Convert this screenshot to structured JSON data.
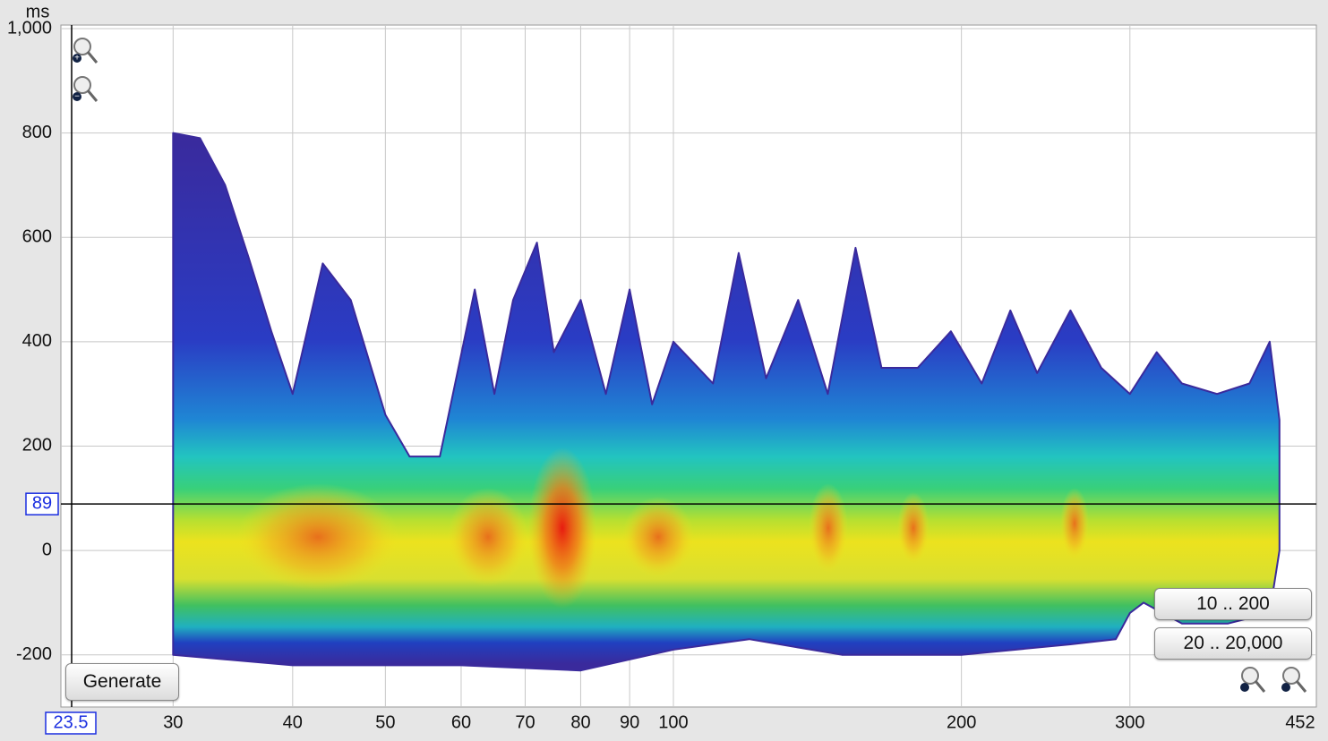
{
  "chart_data": {
    "type": "spectrogram",
    "y_unit": "ms",
    "x_scale": "log",
    "grid": true,
    "xlim": [
      23.5,
      452
    ],
    "ylim": [
      -300,
      1000
    ],
    "xticks": [
      30,
      40,
      50,
      60,
      70,
      80,
      90,
      100,
      200,
      300
    ],
    "yticks": [
      {
        "value": 1000,
        "label": "1,000"
      },
      800,
      600,
      400,
      200,
      0,
      -200
    ],
    "cursor": {
      "x": 23.5,
      "y": 89
    },
    "envelope": {
      "top_x": [
        30,
        32,
        34,
        36,
        38,
        40,
        43,
        46,
        50,
        53,
        57,
        62,
        65,
        68,
        72,
        75,
        80,
        85,
        90,
        95,
        100,
        110,
        117,
        125,
        135,
        145,
        155,
        165,
        180,
        195,
        210,
        225,
        240,
        260,
        280,
        300,
        320,
        340,
        370,
        400,
        420,
        430
      ],
      "top": [
        800,
        790,
        700,
        560,
        420,
        300,
        550,
        480,
        260,
        180,
        180,
        500,
        300,
        480,
        590,
        380,
        480,
        300,
        500,
        280,
        400,
        320,
        570,
        330,
        480,
        300,
        580,
        350,
        350,
        420,
        320,
        460,
        340,
        460,
        350,
        300,
        380,
        320,
        300,
        320,
        400,
        250
      ],
      "bottom_x": [
        30,
        40,
        60,
        80,
        100,
        120,
        150,
        200,
        260,
        290,
        300,
        310,
        340,
        380,
        420,
        430
      ],
      "bottom": [
        -200,
        -220,
        -220,
        -230,
        -190,
        -170,
        -200,
        -200,
        -180,
        -170,
        -120,
        -100,
        -140,
        -140,
        -120,
        0
      ]
    }
  },
  "buttons": {
    "generate": "Generate",
    "range_low": "10 .. 200",
    "range_full": "20 .. 20,000"
  }
}
